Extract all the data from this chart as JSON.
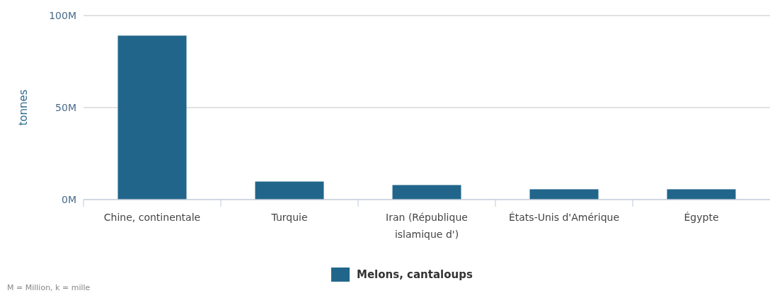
{
  "chart_data": {
    "type": "bar",
    "ylabel": "tonnes",
    "categories": [
      "Chine, continentale",
      "Turquie",
      "Iran (République islamique d')",
      "États-Unis d'Amérique",
      "Égypte"
    ],
    "series": [
      {
        "name": "Melons, cantaloups",
        "color": "#21668a",
        "values": [
          89100000,
          9800000,
          7900000,
          5600000,
          5600000
        ]
      }
    ],
    "ylim": [
      0,
      100000000
    ],
    "yticks": [
      {
        "value": 0,
        "label": "0M"
      },
      {
        "value": 50000000,
        "label": "50M"
      },
      {
        "value": 100000000,
        "label": "100M"
      }
    ],
    "grid": "y",
    "legend": "bottom",
    "annotations": [
      "M = Million, k = mille"
    ]
  }
}
